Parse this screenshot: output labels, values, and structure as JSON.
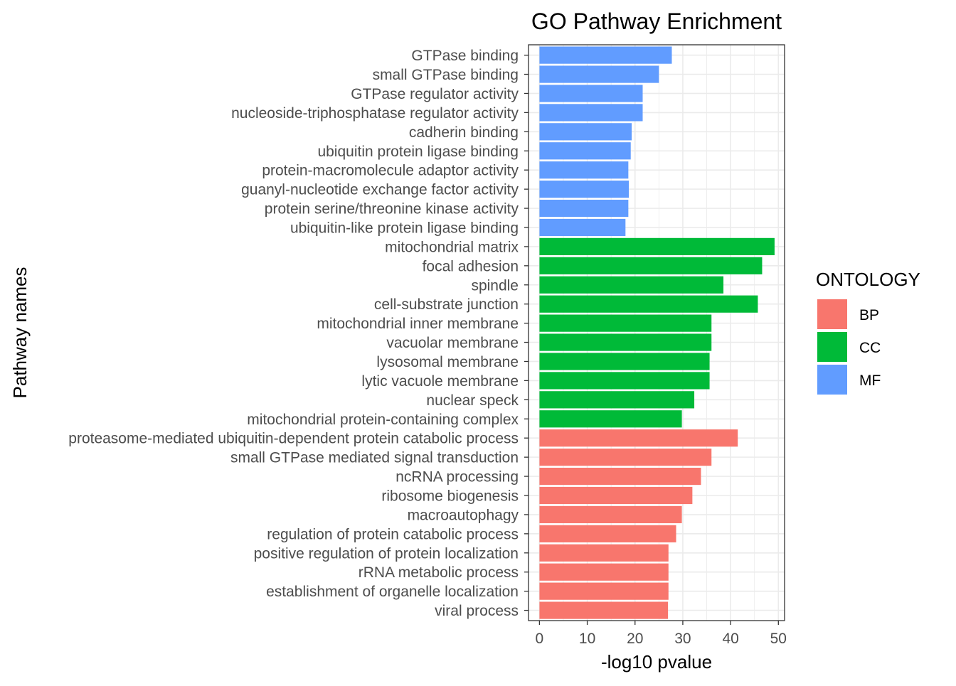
{
  "chart_data": {
    "type": "bar",
    "orientation": "horizontal",
    "title": "GO Pathway Enrichment",
    "xlabel": "-log10 pvalue",
    "ylabel": "Pathway names",
    "xlim": [
      0,
      51
    ],
    "x_ticks": [
      0,
      10,
      20,
      30,
      40,
      50
    ],
    "grid": true,
    "legend": {
      "title": "ONTOLOGY",
      "placement": "right",
      "entries": [
        {
          "name": "BP",
          "color": "#F8766D"
        },
        {
          "name": "CC",
          "color": "#00BA38"
        },
        {
          "name": "MF",
          "color": "#619CFF"
        }
      ]
    },
    "categories": [
      "GTPase binding",
      "small GTPase binding",
      "GTPase regulator activity",
      "nucleoside-triphosphatase regulator activity",
      "cadherin binding",
      "ubiquitin protein ligase binding",
      "protein-macromolecule adaptor activity",
      "guanyl-nucleotide exchange factor activity",
      "protein serine/threonine kinase activity",
      "ubiquitin-like protein ligase binding",
      "mitochondrial matrix",
      "focal adhesion",
      "spindle",
      "cell-substrate junction",
      "mitochondrial inner membrane",
      "vacuolar membrane",
      "lysosomal membrane",
      "lytic vacuole membrane",
      "nuclear speck",
      "mitochondrial protein-containing complex",
      "proteasome-mediated ubiquitin-dependent protein catabolic process",
      "small GTPase mediated signal transduction",
      "ncRNA processing",
      "ribosome biogenesis",
      "macroautophagy",
      "regulation of protein catabolic process",
      "positive regulation of protein localization",
      "rRNA metabolic process",
      "establishment of organelle localization",
      "viral process"
    ],
    "values": [
      27.7,
      25.0,
      21.6,
      21.6,
      19.3,
      19.1,
      18.6,
      18.7,
      18.6,
      18.0,
      49.2,
      46.6,
      38.5,
      45.7,
      36.0,
      36.0,
      35.6,
      35.6,
      32.4,
      29.8,
      41.5,
      36.0,
      33.8,
      32.0,
      29.8,
      28.6,
      27.0,
      27.0,
      27.0,
      26.9
    ],
    "groups": [
      "MF",
      "MF",
      "MF",
      "MF",
      "MF",
      "MF",
      "MF",
      "MF",
      "MF",
      "MF",
      "CC",
      "CC",
      "CC",
      "CC",
      "CC",
      "CC",
      "CC",
      "CC",
      "CC",
      "CC",
      "BP",
      "BP",
      "BP",
      "BP",
      "BP",
      "BP",
      "BP",
      "BP",
      "BP",
      "BP"
    ]
  }
}
